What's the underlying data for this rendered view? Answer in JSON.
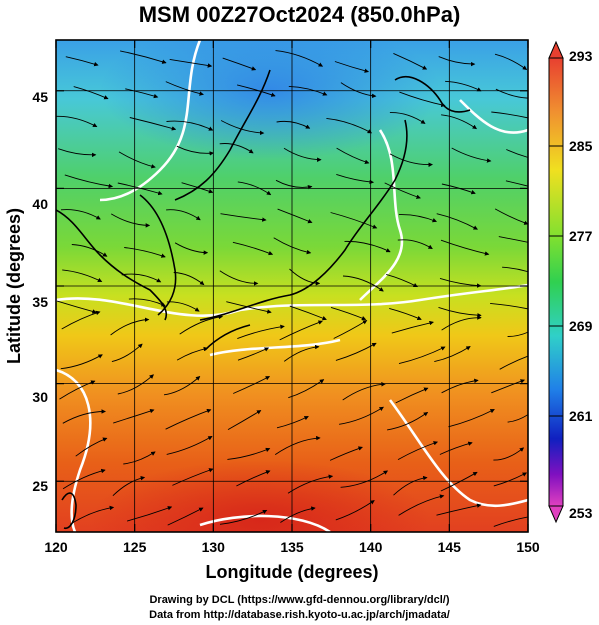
{
  "title": "MSM 00Z27Oct2024 (850.0hPa)",
  "x_axis": {
    "label": "Longitude (degrees)",
    "ticks": [
      "120",
      "125",
      "130",
      "135",
      "140",
      "145",
      "150"
    ]
  },
  "y_axis": {
    "label": "Latitude  (degrees)",
    "ticks": [
      "25",
      "30",
      "35",
      "40",
      "45"
    ]
  },
  "colorbar": {
    "labels": [
      "293",
      "285",
      "277",
      "269",
      "261",
      "253"
    ],
    "min": 253,
    "max": 293
  },
  "credits": {
    "line1": "Drawing by DCL (https://www.gfd-dennou.org/library/dcl/)",
    "line2": "Data from http://database.rish.kyoto-u.ac.jp/arch/jmadata/"
  },
  "chart_data": {
    "type": "heatmap",
    "title": "MSM 00Z27Oct2024 (850.0hPa)",
    "xlabel": "Longitude (degrees)",
    "ylabel": "Latitude  (degrees)",
    "xlim": [
      120,
      150
    ],
    "ylim": [
      22.4,
      47.6
    ],
    "xticks": [
      120,
      125,
      130,
      135,
      140,
      145,
      150
    ],
    "yticks": [
      25,
      30,
      35,
      40,
      45
    ],
    "colorbar_range": [
      253,
      293
    ],
    "colorbar_ticks": [
      253,
      261,
      269,
      277,
      285,
      293
    ],
    "grid": true,
    "overlay": "wind streamlines and white contour lines over temperature field"
  }
}
